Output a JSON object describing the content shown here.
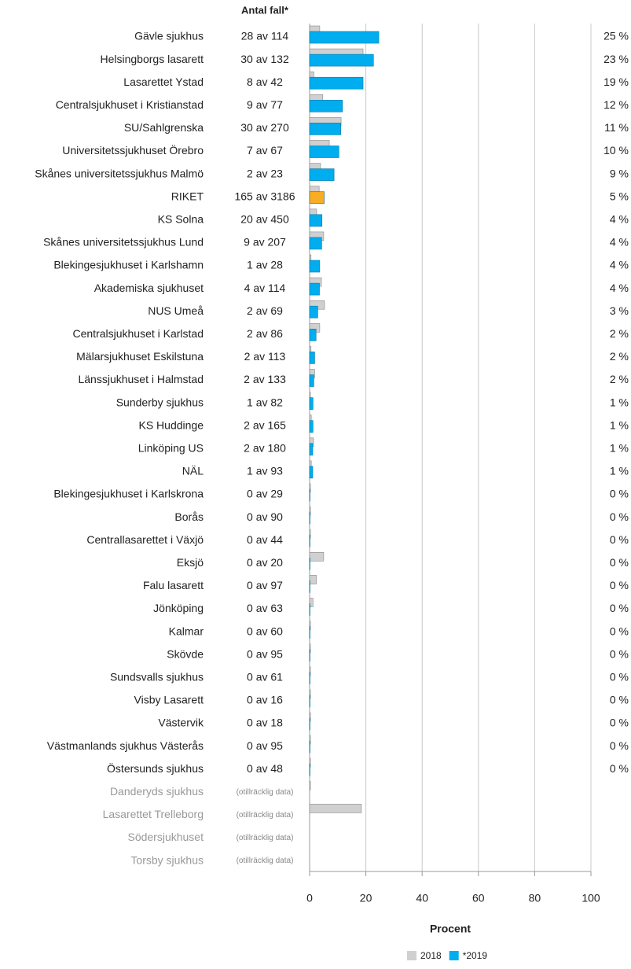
{
  "chart_data": {
    "type": "bar",
    "orientation": "horizontal",
    "count_header": "Antal fall*",
    "xlabel": "Procent",
    "categories": [
      "Gävle sjukhus",
      "Helsingborgs lasarett",
      "Lasarettet Ystad",
      "Centralsjukhuset i Kristianstad",
      "SU/Sahlgrenska",
      "Universitetssjukhuset Örebro",
      "Skånes universitetssjukhus Malmö",
      "RIKET",
      "KS Solna",
      "Skånes universitetssjukhus Lund",
      "Blekingesjukhuset i Karlshamn",
      "Akademiska sjukhuset",
      "NUS Umeå",
      "Centralsjukhuset i Karlstad",
      "Mälarsjukhuset Eskilstuna",
      "Länssjukhuset i Halmstad",
      "Sunderby sjukhus",
      "KS Huddinge",
      "Linköping US",
      "NÄL",
      "Blekingesjukhuset i Karlskrona",
      "Borås",
      "Centrallasarettet i Växjö",
      "Eksjö",
      "Falu lasarett",
      "Jönköping",
      "Kalmar",
      "Skövde",
      "Sundsvalls sjukhus",
      "Visby Lasarett",
      "Västervik",
      "Västmanlands sjukhus Västerås",
      "Östersunds sjukhus",
      "Danderyds sjukhus",
      "Lasarettet Trelleborg",
      "Södersjukhuset",
      "Torsby sjukhus"
    ],
    "counts": [
      "28 av 114",
      "30 av 132",
      "8 av 42",
      "9 av 77",
      "30 av 270",
      "7 av 67",
      "2 av 23",
      "165 av 3186",
      "20 av 450",
      "9 av 207",
      "1 av 28",
      "4 av 114",
      "2 av 69",
      "2 av 86",
      "2 av 113",
      "2 av 133",
      "1 av 82",
      "2 av 165",
      "2 av 180",
      "1 av 93",
      "0 av 29",
      "0 av 90",
      "0 av 44",
      "0 av 20",
      "0 av 97",
      "0 av 63",
      "0 av 60",
      "0 av 95",
      "0 av 61",
      "0 av 16",
      "0 av 18",
      "0 av 95",
      "0 av 48",
      "(otillräcklig data)",
      "(otillräcklig data)",
      "(otillräcklig data)",
      "(otillräcklig data)"
    ],
    "series": [
      {
        "name": "2018",
        "color": "#d0d0d0",
        "values": [
          3.6,
          19,
          1.5,
          4.7,
          11.2,
          7,
          3.9,
          3.4,
          2.5,
          5,
          0.5,
          4.2,
          5.3,
          3.6,
          0.5,
          1.8,
          0.3,
          0.6,
          1.4,
          0.6,
          0.3,
          0.3,
          0.3,
          5,
          2.4,
          1.2,
          0.3,
          0.3,
          0.3,
          0.3,
          0.3,
          0.3,
          0.3,
          0.3,
          18.4,
          null,
          null
        ]
      },
      {
        "name": "*2019",
        "color": "#00adef",
        "highlight_color": "#f9ac25",
        "highlight_category": "RIKET",
        "values": [
          24.6,
          22.7,
          19.0,
          11.7,
          11.1,
          10.4,
          8.7,
          5.2,
          4.4,
          4.3,
          3.6,
          3.5,
          2.9,
          2.3,
          1.8,
          1.5,
          1.2,
          1.2,
          1.1,
          1.1,
          0,
          0,
          0,
          0,
          0,
          0,
          0,
          0,
          0,
          0,
          0,
          0,
          0,
          null,
          null,
          null,
          null
        ],
        "value_labels": [
          "25 %",
          "23 %",
          "19 %",
          "12 %",
          "11 %",
          "10 %",
          "9 %",
          "5 %",
          "4 %",
          "4 %",
          "4 %",
          "4 %",
          "3 %",
          "2 %",
          "2 %",
          "2 %",
          "1 %",
          "1 %",
          "1 %",
          "1 %",
          "0 %",
          "0 %",
          "0 %",
          "0 %",
          "0 %",
          "0 %",
          "0 %",
          "0 %",
          "0 %",
          "0 %",
          "0 %",
          "0 %",
          "0 %",
          null,
          null,
          null,
          null
        ]
      }
    ],
    "xlim": [
      0,
      100
    ],
    "xticks": [
      0,
      20,
      40,
      60,
      80,
      100
    ],
    "grid": true
  }
}
